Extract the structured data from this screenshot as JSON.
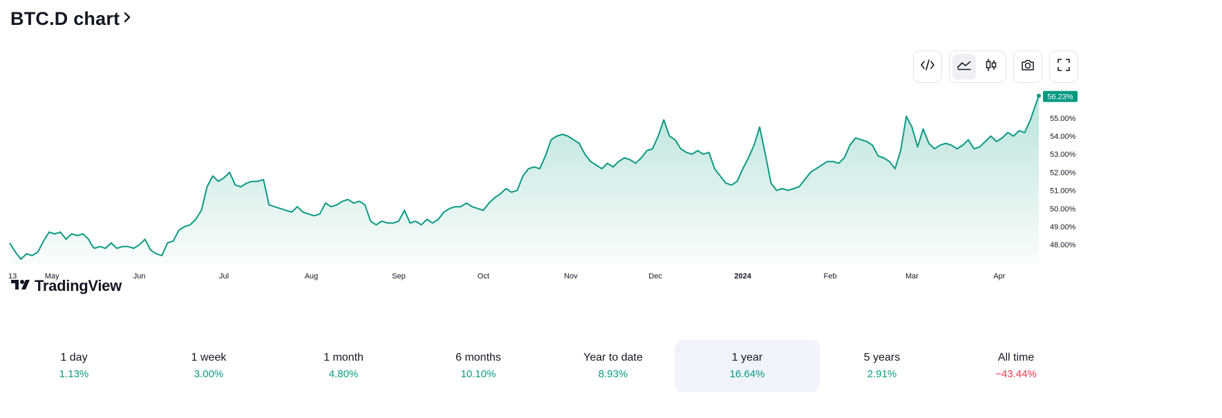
{
  "header": {
    "title": "BTC.D chart"
  },
  "toolbar": {
    "buttons": [
      {
        "name": "embed",
        "icon": "code-icon"
      },
      {
        "name": "line-chart",
        "icon": "area-chart-icon",
        "active": true
      },
      {
        "name": "candles",
        "icon": "candlestick-icon"
      },
      {
        "name": "snapshot",
        "icon": "camera-icon"
      },
      {
        "name": "fullscreen",
        "icon": "fullscreen-icon"
      }
    ]
  },
  "logo": {
    "text": "TradingView"
  },
  "colors": {
    "line": "#089981",
    "positive": "#089981",
    "negative": "#f23645",
    "badge": "#089981"
  },
  "chart_data": {
    "type": "area",
    "last_value_label": "56.23%",
    "y_ticks": [
      "48.00%",
      "49.00%",
      "50.00%",
      "51.00%",
      "52.00%",
      "53.00%",
      "54.00%",
      "55.00%"
    ],
    "y_tick_values": [
      48,
      49,
      50,
      51,
      52,
      53,
      54,
      55
    ],
    "ylim": [
      46.9,
      56.75
    ],
    "x_ticks": [
      {
        "label": "13",
        "t": 0
      },
      {
        "label": "May",
        "t": 15
      },
      {
        "label": "Jun",
        "t": 46
      },
      {
        "label": "Jul",
        "t": 76
      },
      {
        "label": "Aug",
        "t": 107
      },
      {
        "label": "Sep",
        "t": 138
      },
      {
        "label": "Oct",
        "t": 168
      },
      {
        "label": "Nov",
        "t": 199
      },
      {
        "label": "Dec",
        "t": 229
      },
      {
        "label": "2024",
        "t": 260,
        "bold": true
      },
      {
        "label": "Feb",
        "t": 291
      },
      {
        "label": "Mar",
        "t": 320
      },
      {
        "label": "Apr",
        "t": 351
      }
    ],
    "x_range": [
      0,
      365
    ],
    "series": [
      {
        "points": [
          [
            0,
            48.1
          ],
          [
            2,
            47.6
          ],
          [
            4,
            47.2
          ],
          [
            6,
            47.5
          ],
          [
            8,
            47.4
          ],
          [
            10,
            47.6
          ],
          [
            12,
            48.2
          ],
          [
            14,
            48.7
          ],
          [
            16,
            48.6
          ],
          [
            18,
            48.7
          ],
          [
            20,
            48.3
          ],
          [
            22,
            48.6
          ],
          [
            24,
            48.5
          ],
          [
            26,
            48.6
          ],
          [
            28,
            48.3
          ],
          [
            29,
            48.0
          ],
          [
            30,
            47.8
          ],
          [
            32,
            47.9
          ],
          [
            34,
            47.8
          ],
          [
            36,
            48.1
          ],
          [
            38,
            47.8
          ],
          [
            40,
            47.9
          ],
          [
            42,
            47.9
          ],
          [
            44,
            47.8
          ],
          [
            46,
            48.0
          ],
          [
            48,
            48.3
          ],
          [
            50,
            47.7
          ],
          [
            52,
            47.5
          ],
          [
            54,
            47.4
          ],
          [
            56,
            48.1
          ],
          [
            58,
            48.2
          ],
          [
            60,
            48.8
          ],
          [
            62,
            49.0
          ],
          [
            64,
            49.1
          ],
          [
            66,
            49.4
          ],
          [
            68,
            49.9
          ],
          [
            70,
            51.2
          ],
          [
            72,
            51.8
          ],
          [
            74,
            51.5
          ],
          [
            76,
            51.7
          ],
          [
            78,
            52.0
          ],
          [
            80,
            51.3
          ],
          [
            82,
            51.2
          ],
          [
            84,
            51.4
          ],
          [
            86,
            51.5
          ],
          [
            88,
            51.5
          ],
          [
            90,
            51.6
          ],
          [
            92,
            50.2
          ],
          [
            94,
            50.1
          ],
          [
            96,
            50.0
          ],
          [
            98,
            49.9
          ],
          [
            100,
            49.8
          ],
          [
            102,
            50.1
          ],
          [
            104,
            49.8
          ],
          [
            106,
            49.7
          ],
          [
            108,
            49.6
          ],
          [
            110,
            49.7
          ],
          [
            112,
            50.3
          ],
          [
            114,
            50.1
          ],
          [
            116,
            50.2
          ],
          [
            118,
            50.4
          ],
          [
            120,
            50.5
          ],
          [
            122,
            50.3
          ],
          [
            124,
            50.4
          ],
          [
            126,
            50.2
          ],
          [
            128,
            49.3
          ],
          [
            130,
            49.1
          ],
          [
            132,
            49.3
          ],
          [
            134,
            49.2
          ],
          [
            136,
            49.2
          ],
          [
            138,
            49.3
          ],
          [
            140,
            49.9
          ],
          [
            142,
            49.2
          ],
          [
            144,
            49.3
          ],
          [
            146,
            49.1
          ],
          [
            148,
            49.4
          ],
          [
            150,
            49.2
          ],
          [
            152,
            49.4
          ],
          [
            154,
            49.8
          ],
          [
            156,
            50.0
          ],
          [
            158,
            50.1
          ],
          [
            160,
            50.1
          ],
          [
            162,
            50.3
          ],
          [
            164,
            50.1
          ],
          [
            166,
            50.0
          ],
          [
            168,
            49.9
          ],
          [
            170,
            50.3
          ],
          [
            172,
            50.6
          ],
          [
            174,
            50.8
          ],
          [
            176,
            51.1
          ],
          [
            178,
            50.9
          ],
          [
            180,
            51.0
          ],
          [
            182,
            51.8
          ],
          [
            184,
            52.2
          ],
          [
            186,
            52.3
          ],
          [
            188,
            52.2
          ],
          [
            190,
            52.9
          ],
          [
            192,
            53.8
          ],
          [
            194,
            54.0
          ],
          [
            196,
            54.1
          ],
          [
            198,
            54.0
          ],
          [
            200,
            53.8
          ],
          [
            202,
            53.6
          ],
          [
            204,
            53.0
          ],
          [
            206,
            52.6
          ],
          [
            208,
            52.4
          ],
          [
            210,
            52.2
          ],
          [
            212,
            52.5
          ],
          [
            214,
            52.3
          ],
          [
            216,
            52.6
          ],
          [
            218,
            52.8
          ],
          [
            220,
            52.7
          ],
          [
            222,
            52.5
          ],
          [
            224,
            52.8
          ],
          [
            226,
            53.2
          ],
          [
            228,
            53.3
          ],
          [
            230,
            54.0
          ],
          [
            232,
            54.9
          ],
          [
            234,
            54.0
          ],
          [
            236,
            53.8
          ],
          [
            238,
            53.3
          ],
          [
            240,
            53.1
          ],
          [
            242,
            53.0
          ],
          [
            244,
            53.2
          ],
          [
            246,
            53.0
          ],
          [
            248,
            53.1
          ],
          [
            250,
            52.2
          ],
          [
            252,
            51.8
          ],
          [
            254,
            51.4
          ],
          [
            256,
            51.3
          ],
          [
            258,
            51.5
          ],
          [
            260,
            52.2
          ],
          [
            262,
            52.8
          ],
          [
            264,
            53.5
          ],
          [
            266,
            54.5
          ],
          [
            268,
            53.0
          ],
          [
            270,
            51.4
          ],
          [
            272,
            51.0
          ],
          [
            274,
            51.1
          ],
          [
            276,
            51.0
          ],
          [
            278,
            51.1
          ],
          [
            280,
            51.2
          ],
          [
            282,
            51.6
          ],
          [
            284,
            52.0
          ],
          [
            286,
            52.2
          ],
          [
            288,
            52.4
          ],
          [
            290,
            52.6
          ],
          [
            292,
            52.6
          ],
          [
            294,
            52.5
          ],
          [
            296,
            52.8
          ],
          [
            298,
            53.5
          ],
          [
            300,
            53.9
          ],
          [
            302,
            53.8
          ],
          [
            304,
            53.7
          ],
          [
            306,
            53.5
          ],
          [
            308,
            52.9
          ],
          [
            310,
            52.8
          ],
          [
            312,
            52.6
          ],
          [
            314,
            52.2
          ],
          [
            316,
            53.2
          ],
          [
            318,
            55.1
          ],
          [
            320,
            54.5
          ],
          [
            322,
            53.4
          ],
          [
            324,
            54.4
          ],
          [
            326,
            53.6
          ],
          [
            328,
            53.3
          ],
          [
            330,
            53.5
          ],
          [
            332,
            53.6
          ],
          [
            334,
            53.5
          ],
          [
            336,
            53.3
          ],
          [
            338,
            53.5
          ],
          [
            340,
            53.8
          ],
          [
            342,
            53.3
          ],
          [
            344,
            53.4
          ],
          [
            346,
            53.7
          ],
          [
            348,
            54.0
          ],
          [
            350,
            53.7
          ],
          [
            352,
            53.9
          ],
          [
            354,
            54.2
          ],
          [
            356,
            54.0
          ],
          [
            358,
            54.3
          ],
          [
            360,
            54.2
          ],
          [
            362,
            54.9
          ],
          [
            364,
            55.8
          ],
          [
            365,
            56.23
          ]
        ]
      }
    ]
  },
  "periods": [
    {
      "label": "1 day",
      "value": "1.13%",
      "sign": "positive"
    },
    {
      "label": "1 week",
      "value": "3.00%",
      "sign": "positive"
    },
    {
      "label": "1 month",
      "value": "4.80%",
      "sign": "positive"
    },
    {
      "label": "6 months",
      "value": "10.10%",
      "sign": "positive"
    },
    {
      "label": "Year to date",
      "value": "8.93%",
      "sign": "positive"
    },
    {
      "label": "1 year",
      "value": "16.64%",
      "sign": "positive",
      "active": true
    },
    {
      "label": "5 years",
      "value": "2.91%",
      "sign": "positive"
    },
    {
      "label": "All time",
      "value": "−43.44%",
      "sign": "negative"
    }
  ]
}
